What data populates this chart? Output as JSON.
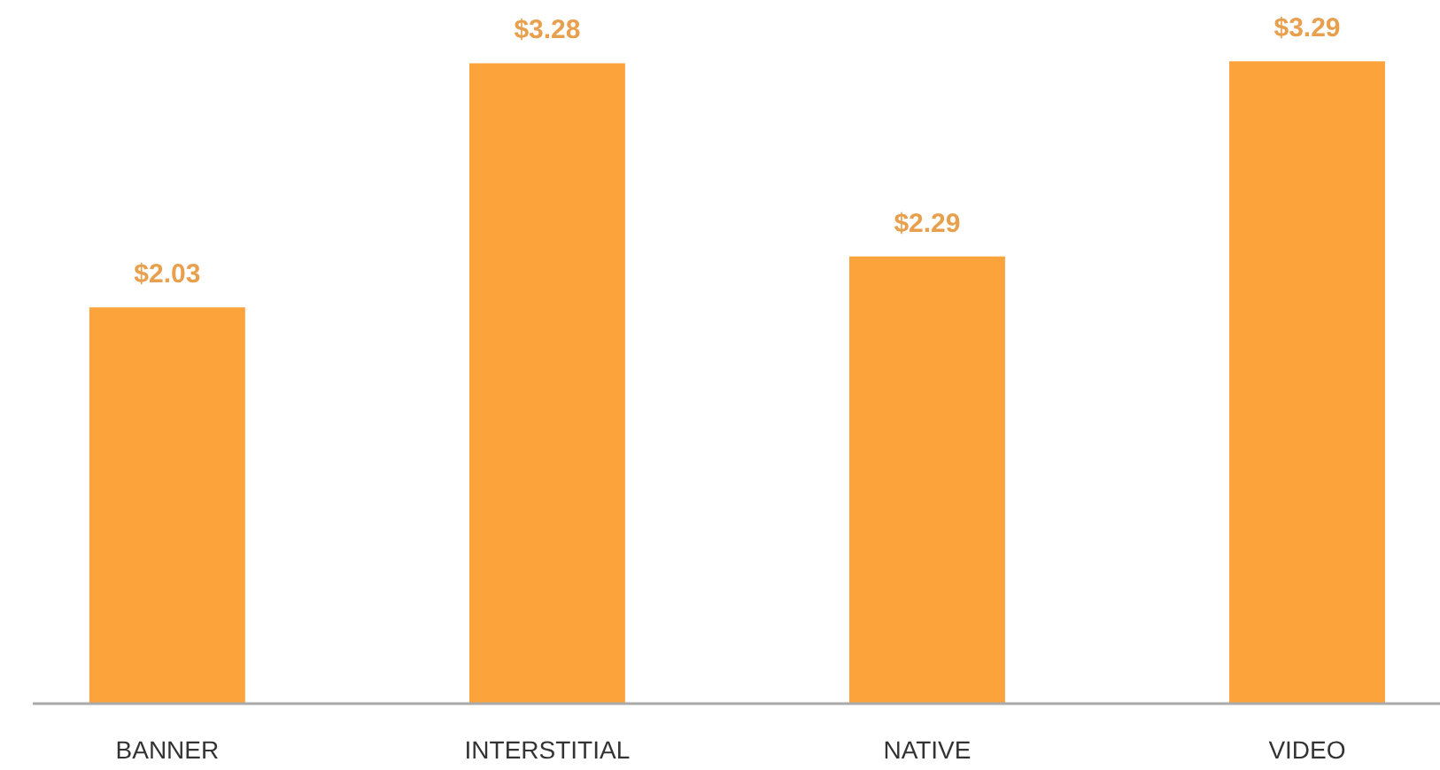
{
  "chart_data": {
    "type": "bar",
    "categories": [
      "BANNER",
      "INTERSTITIAL",
      "NATIVE",
      "VIDEO"
    ],
    "values": [
      2.03,
      3.28,
      2.29,
      3.29
    ],
    "value_labels": [
      "$2.03",
      "$3.28",
      "$2.29",
      "$3.29"
    ],
    "color": "#fda33b",
    "grid": false,
    "tick_labels": "x"
  }
}
